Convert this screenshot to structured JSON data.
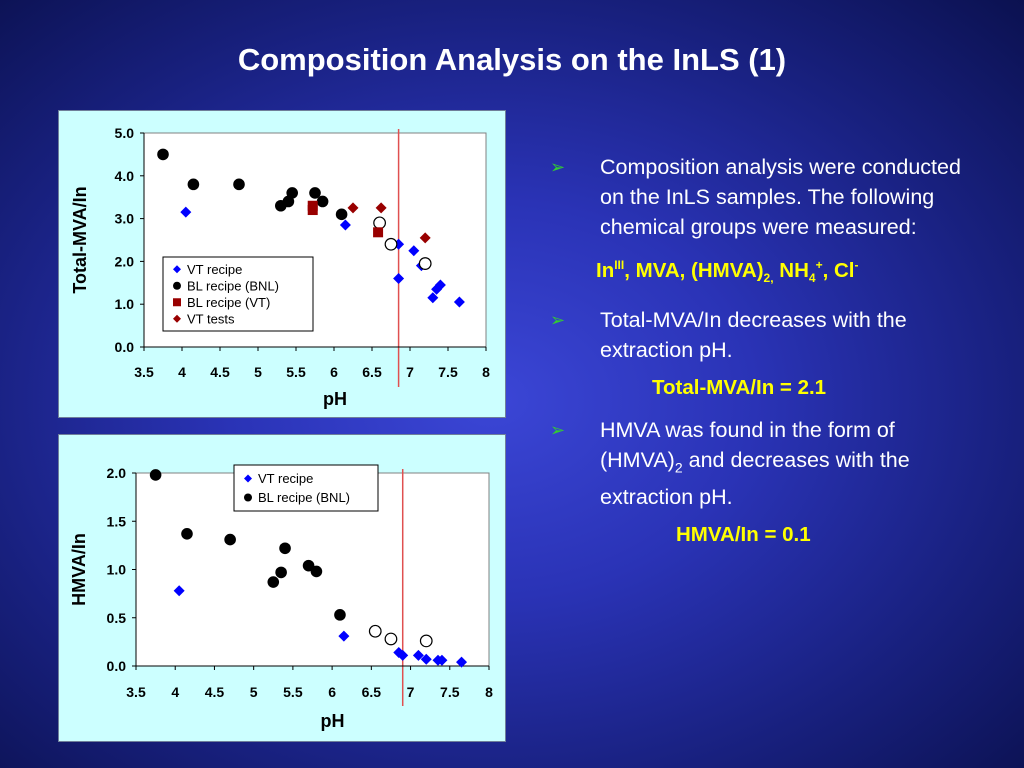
{
  "title": "Composition Analysis on the InLS (1)",
  "bullets": [
    {
      "text": "Composition analysis were conducted on the InLS samples. The following chemical groups were measured:"
    },
    {
      "text": "Total-MVA/In decreases with the extraction pH."
    },
    {
      "text_a": "HMVA was found in the form of (HMVA)",
      "sub": "2",
      "text_b": " and decreases with the extraction pH."
    }
  ],
  "bullet_marker": "➢",
  "formulas": {
    "chemical_groups": {
      "in": "In",
      "in_sup": "III",
      "mva_hmva": ", MVA, (HMVA)",
      "hmva_sub": "2,",
      "nh4": " NH",
      "nh4_sub": "4",
      "nh4_sup": "+",
      "cl": ", Cl",
      "cl_sup": "-"
    },
    "total_mva": "Total-MVA/In = 2.1",
    "hmva": "HMVA/In = 0.1"
  },
  "colors": {
    "accent_yellow": "#ffff00",
    "arrow_green": "#33cc33",
    "chart_bg": "#ccffff",
    "vt_recipe": "#0000ff",
    "bl_recipe_bnl": "#000000",
    "bl_recipe_vt": "#990000",
    "vt_tests": "#990000",
    "ref_line": "#e05050"
  },
  "chart_data": [
    {
      "type": "scatter",
      "xlabel": "pH",
      "ylabel": "Total-MVA/In",
      "xlim": [
        3.5,
        8
      ],
      "ylim": [
        0,
        5
      ],
      "xticks": [
        "3.5",
        "4",
        "4.5",
        "5",
        "5.5",
        "6",
        "6.5",
        "7",
        "7.5",
        "8"
      ],
      "yticks": [
        "0.0",
        "1.0",
        "2.0",
        "3.0",
        "4.0",
        "5.0"
      ],
      "vline_x": 6.85,
      "legend_position": "lower-left",
      "series": [
        {
          "name": "VT recipe",
          "marker": "diamond",
          "color": "#0000ff",
          "points": [
            [
              4.05,
              3.15
            ],
            [
              6.15,
              2.85
            ],
            [
              6.85,
              2.4
            ],
            [
              6.85,
              1.6
            ],
            [
              7.05,
              2.25
            ],
            [
              7.15,
              1.9
            ],
            [
              7.3,
              1.15
            ],
            [
              7.35,
              1.35
            ],
            [
              7.4,
              1.45
            ],
            [
              7.65,
              1.05
            ]
          ]
        },
        {
          "name": "BL recipe (BNL)",
          "marker": "circle",
          "color": "#000000",
          "points": [
            [
              3.75,
              4.5
            ],
            [
              4.15,
              3.8
            ],
            [
              4.75,
              3.8
            ],
            [
              5.3,
              3.3
            ],
            [
              5.4,
              3.4
            ],
            [
              5.45,
              3.6
            ],
            [
              5.75,
              3.6
            ],
            [
              5.85,
              3.4
            ],
            [
              6.1,
              3.1
            ]
          ]
        },
        {
          "name": "",
          "marker": "open-circle",
          "color": "#000000",
          "points": [
            [
              6.6,
              2.9
            ],
            [
              6.75,
              2.4
            ],
            [
              7.2,
              1.95
            ]
          ]
        },
        {
          "name": "BL recipe (VT)",
          "marker": "square",
          "color": "#990000",
          "points": [
            [
              5.72,
              3.3
            ],
            [
              5.72,
              3.2
            ],
            [
              6.58,
              2.68
            ]
          ]
        },
        {
          "name": "VT tests",
          "marker": "diamond",
          "color": "#990000",
          "points": [
            [
              6.25,
              3.25
            ],
            [
              6.62,
              3.25
            ],
            [
              7.2,
              2.55
            ]
          ]
        }
      ]
    },
    {
      "type": "scatter",
      "xlabel": "pH",
      "ylabel": "HMVA/In",
      "xlim": [
        3.5,
        8
      ],
      "ylim": [
        0,
        2
      ],
      "xticks": [
        "3.5",
        "4",
        "4.5",
        "5",
        "5.5",
        "6",
        "6.5",
        "7",
        "7.5",
        "8"
      ],
      "yticks": [
        "0.0",
        "0.5",
        "1.0",
        "1.5",
        "2.0"
      ],
      "vline_x": 6.9,
      "legend_position": "top-right",
      "series": [
        {
          "name": "VT recipe",
          "marker": "diamond",
          "color": "#0000ff",
          "points": [
            [
              4.05,
              0.78
            ],
            [
              6.15,
              0.31
            ],
            [
              6.85,
              0.14
            ],
            [
              6.9,
              0.11
            ],
            [
              7.1,
              0.11
            ],
            [
              7.2,
              0.07
            ],
            [
              7.35,
              0.06
            ],
            [
              7.4,
              0.06
            ],
            [
              7.65,
              0.04
            ]
          ]
        },
        {
          "name": "BL recipe (BNL)",
          "marker": "circle",
          "color": "#000000",
          "points": [
            [
              3.75,
              1.98
            ],
            [
              4.15,
              1.37
            ],
            [
              4.7,
              1.31
            ],
            [
              5.25,
              0.87
            ],
            [
              5.35,
              0.97
            ],
            [
              5.4,
              1.22
            ],
            [
              5.7,
              1.04
            ],
            [
              5.8,
              0.98
            ],
            [
              6.1,
              0.53
            ]
          ]
        },
        {
          "name": "",
          "marker": "open-circle",
          "color": "#000000",
          "points": [
            [
              6.55,
              0.36
            ],
            [
              6.75,
              0.28
            ],
            [
              7.2,
              0.26
            ]
          ]
        }
      ]
    }
  ]
}
